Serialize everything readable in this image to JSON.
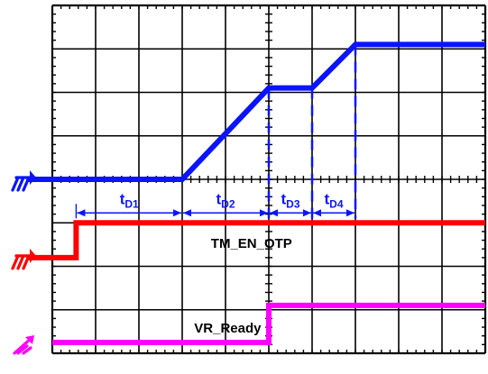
{
  "colors": {
    "grid": "#000000",
    "channel_blue": "#0a14ff",
    "channel_red": "#ff0000",
    "channel_magenta": "#ff00ff",
    "background": "#ffffff"
  },
  "chart_data": {
    "type": "line",
    "title": "",
    "xlabel": "",
    "ylabel": "",
    "grid": true,
    "xlim": [
      0,
      10
    ],
    "ylim": [
      0,
      8
    ],
    "series": [
      {
        "name": "",
        "color": "#0a14ff",
        "points": [
          [
            -0.6,
            4.0
          ],
          [
            1.5,
            4.0
          ],
          [
            3.0,
            4.0
          ],
          [
            5.0,
            6.1
          ],
          [
            6.0,
            6.1
          ],
          [
            7.0,
            7.1
          ],
          [
            10.0,
            7.1
          ]
        ]
      },
      {
        "name": "TM_EN_OTP",
        "color": "#ff0000",
        "points": [
          [
            -0.6,
            2.2
          ],
          [
            0.55,
            2.2
          ],
          [
            0.55,
            3.0
          ],
          [
            10.0,
            3.0
          ]
        ]
      },
      {
        "name": "VR_Ready",
        "color": "#ff00ff",
        "points": [
          [
            0.0,
            0.25
          ],
          [
            5.0,
            0.25
          ],
          [
            5.0,
            1.1
          ],
          [
            10.0,
            1.1
          ]
        ]
      }
    ],
    "intervals": [
      {
        "label": "t",
        "sub": "D1",
        "from": 0.55,
        "to": 3.0
      },
      {
        "label": "t",
        "sub": "D2",
        "from": 3.0,
        "to": 5.0
      },
      {
        "label": "t",
        "sub": "D3",
        "from": 5.0,
        "to": 6.0
      },
      {
        "label": "t",
        "sub": "D4",
        "from": 6.0,
        "to": 7.0
      }
    ],
    "annotations": [
      {
        "text": "TM_EN_OTP",
        "x": 4.6,
        "y": 2.55
      },
      {
        "text": "VR_Ready",
        "x": 4.05,
        "y": 0.6
      }
    ],
    "dashed_markers": [
      {
        "x": 5.0,
        "y_top": 6.1,
        "y_bottom": 3.1
      },
      {
        "x": 6.0,
        "y_top": 6.1,
        "y_bottom": 3.1
      },
      {
        "x": 7.0,
        "y_top": 7.1,
        "y_bottom": 3.1
      }
    ],
    "ground_markers": [
      {
        "icon": "ground-icon",
        "color": "#0a14ff",
        "y": 4.0
      },
      {
        "icon": "ground-icon",
        "color": "#ff0000",
        "y": 2.2
      },
      {
        "icon": "arrow-up-icon",
        "color": "#ff00ff",
        "y": 0.25
      }
    ]
  }
}
